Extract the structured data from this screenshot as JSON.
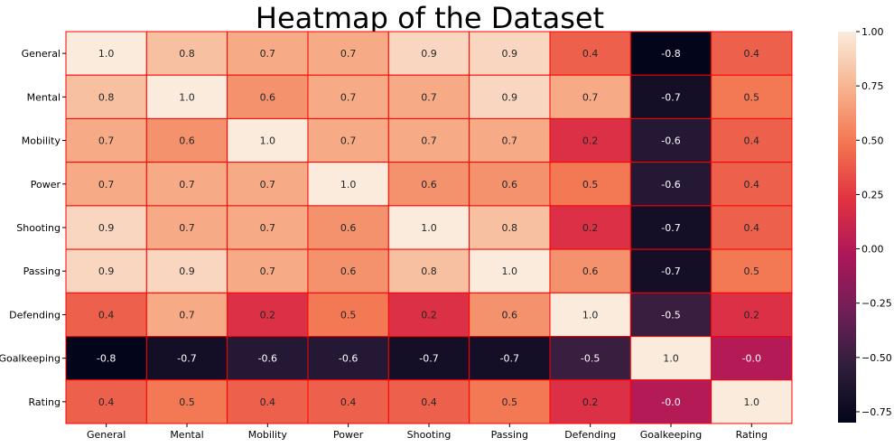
{
  "chart_data": {
    "type": "heatmap",
    "title": "Heatmap of the Dataset",
    "xlabel": "",
    "ylabel": "",
    "x_labels": [
      "General",
      "Mental",
      "Mobility",
      "Power",
      "Shooting",
      "Passing",
      "Defending",
      "Goalkeeping",
      "Rating"
    ],
    "y_labels": [
      "General",
      "Mental",
      "Mobility",
      "Power",
      "Shooting",
      "Passing",
      "Defending",
      "Goalkeeping",
      "Rating"
    ],
    "values": [
      [
        1.0,
        0.8,
        0.7,
        0.7,
        0.9,
        0.9,
        0.4,
        -0.8,
        0.4
      ],
      [
        0.8,
        1.0,
        0.6,
        0.7,
        0.7,
        0.9,
        0.7,
        -0.7,
        0.5
      ],
      [
        0.7,
        0.6,
        1.0,
        0.7,
        0.7,
        0.7,
        0.2,
        -0.6,
        0.4
      ],
      [
        0.7,
        0.7,
        0.7,
        1.0,
        0.6,
        0.6,
        0.5,
        -0.6,
        0.4
      ],
      [
        0.9,
        0.7,
        0.7,
        0.6,
        1.0,
        0.8,
        0.2,
        -0.7,
        0.4
      ],
      [
        0.9,
        0.9,
        0.7,
        0.6,
        0.8,
        1.0,
        0.6,
        -0.7,
        0.5
      ],
      [
        0.4,
        0.7,
        0.2,
        0.5,
        0.2,
        0.6,
        1.0,
        -0.5,
        0.2
      ],
      [
        -0.8,
        -0.7,
        -0.6,
        -0.6,
        -0.7,
        -0.7,
        -0.5,
        1.0,
        -0.0
      ],
      [
        0.4,
        0.5,
        0.4,
        0.4,
        0.4,
        0.5,
        0.2,
        -0.0,
        1.0
      ]
    ],
    "value_labels": [
      [
        "1.0",
        "0.8",
        "0.7",
        "0.7",
        "0.9",
        "0.9",
        "0.4",
        "-0.8",
        "0.4"
      ],
      [
        "0.8",
        "1.0",
        "0.6",
        "0.7",
        "0.7",
        "0.9",
        "0.7",
        "-0.7",
        "0.5"
      ],
      [
        "0.7",
        "0.6",
        "1.0",
        "0.7",
        "0.7",
        "0.7",
        "0.2",
        "-0.6",
        "0.4"
      ],
      [
        "0.7",
        "0.7",
        "0.7",
        "1.0",
        "0.6",
        "0.6",
        "0.5",
        "-0.6",
        "0.4"
      ],
      [
        "0.9",
        "0.7",
        "0.7",
        "0.6",
        "1.0",
        "0.8",
        "0.2",
        "-0.7",
        "0.4"
      ],
      [
        "0.9",
        "0.9",
        "0.7",
        "0.6",
        "0.8",
        "1.0",
        "0.6",
        "-0.7",
        "0.5"
      ],
      [
        "0.4",
        "0.7",
        "0.2",
        "0.5",
        "0.2",
        "0.6",
        "1.0",
        "-0.5",
        "0.2"
      ],
      [
        "-0.8",
        "-0.7",
        "-0.6",
        "-0.6",
        "-0.7",
        "-0.7",
        "-0.5",
        "1.0",
        "-0.0"
      ],
      [
        "0.4",
        "0.5",
        "0.4",
        "0.4",
        "0.4",
        "0.5",
        "0.2",
        "-0.0",
        "1.0"
      ]
    ],
    "colorbar": {
      "range": [
        -0.8,
        1.0
      ],
      "ticks": [
        -0.75,
        -0.5,
        -0.25,
        0.0,
        0.25,
        0.5,
        0.75,
        1.0
      ],
      "tick_labels": [
        "−0.75",
        "−0.50",
        "−0.25",
        "0.00",
        "0.25",
        "0.50",
        "0.75",
        "1.00"
      ],
      "colormap": "rocket",
      "colormap_stops": [
        "#03051a",
        "#2e1e3b",
        "#701f57",
        "#ad1759",
        "#e13342",
        "#f37651",
        "#f6b48f",
        "#faebdd"
      ]
    },
    "grid_line_color": "#ff0000",
    "annotation_dark_text_color": "#262626",
    "annotation_light_text_color": "#ffffff"
  }
}
